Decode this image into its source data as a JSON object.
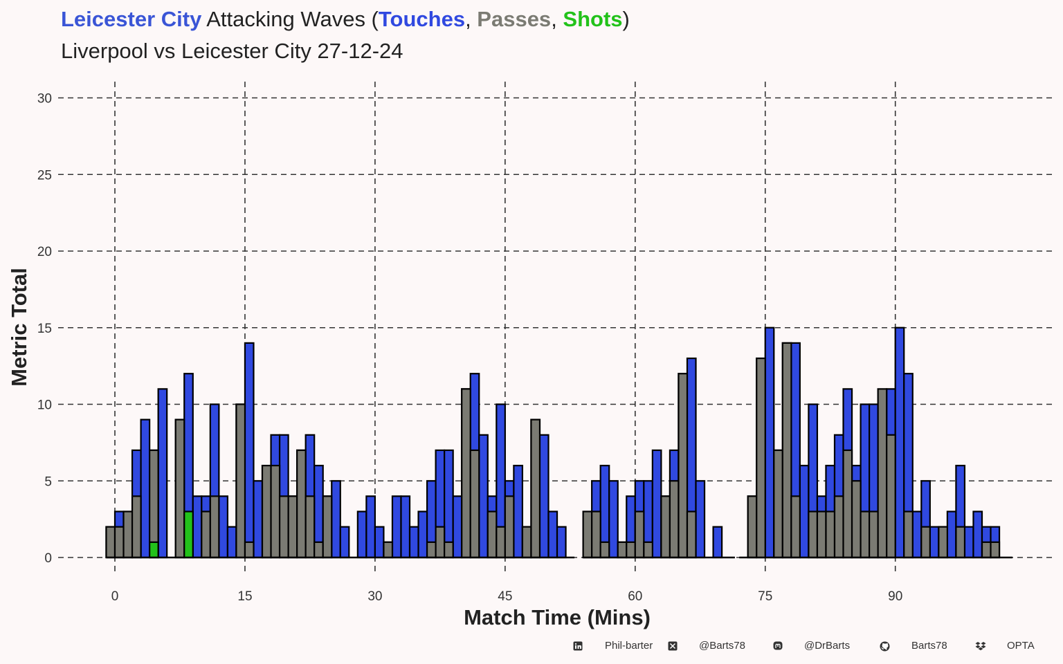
{
  "title": {
    "team": "Leicester City",
    "text_mid": " Attacking Waves (",
    "touches": "Touches",
    "sep1": ", ",
    "passes": "Passes",
    "sep2": ", ",
    "shots": "Shots",
    "close": ")"
  },
  "subtitle": "Liverpool vs Leicester City 27-12-24",
  "colors": {
    "team": "#3a55d6",
    "touches": "#3049e0",
    "passes": "#7b7b73",
    "shots": "#22c21a",
    "background": "#fdf8f8",
    "grid": "#333333"
  },
  "chart_data": {
    "type": "bar",
    "xlabel": "Match Time (Mins)",
    "ylabel": "Metric Total",
    "xlim": [
      -3,
      105
    ],
    "ylim": [
      0,
      30
    ],
    "xticks": [
      0,
      15,
      30,
      45,
      60,
      75,
      90
    ],
    "yticks": [
      0,
      5,
      10,
      15,
      20,
      25,
      30
    ],
    "grid": true,
    "bar_width_minutes": 1,
    "period_baselines": [
      [
        -1,
        53
      ],
      [
        54,
        71.5
      ],
      [
        72,
        103.5
      ]
    ],
    "series": [
      {
        "name": "Touches",
        "x": [
          -0.5,
          0.5,
          1.5,
          2.5,
          3.5,
          4.5,
          5.5,
          7.5,
          8.5,
          9.5,
          10.5,
          11.5,
          12.5,
          13.5,
          14.5,
          15.5,
          16.5,
          17.5,
          18.5,
          19.5,
          20.5,
          21.5,
          22.5,
          23.5,
          24.5,
          25.5,
          26.5,
          28.5,
          29.5,
          30.5,
          31.5,
          32.5,
          33.5,
          34.5,
          35.5,
          36.5,
          37.5,
          38.5,
          39.5,
          40.5,
          41.5,
          42.5,
          43.5,
          44.5,
          45.5,
          46.5,
          47.5,
          48.5,
          49.5,
          50.5,
          51.5,
          54.5,
          55.5,
          56.5,
          57.5,
          58.5,
          59.5,
          60.5,
          61.5,
          62.5,
          63.5,
          64.5,
          65.5,
          66.5,
          67.5,
          69.5,
          73.5,
          74.5,
          75.5,
          76.5,
          77.5,
          78.5,
          79.5,
          80.5,
          81.5,
          82.5,
          83.5,
          84.5,
          85.5,
          86.5,
          87.5,
          88.5,
          89.5,
          90.5,
          91.5,
          92.5,
          93.5,
          94.5,
          95.5,
          96.5,
          97.5,
          98.5,
          99.5,
          100.5,
          101.5,
          102.5
        ],
        "values": [
          2,
          3,
          3,
          7,
          9,
          7,
          11,
          9,
          12,
          4,
          4,
          10,
          4,
          2,
          10,
          14,
          5,
          6,
          8,
          8,
          4,
          7,
          8,
          6,
          4,
          5,
          2,
          3,
          4,
          2,
          1,
          4,
          4,
          2,
          3,
          5,
          7,
          7,
          4,
          11,
          12,
          8,
          4,
          10,
          5,
          6,
          2,
          9,
          8,
          3,
          2,
          3,
          5,
          6,
          5,
          1,
          4,
          5,
          5,
          7,
          4,
          7,
          12,
          13,
          5,
          2,
          4,
          13,
          15,
          7,
          14,
          14,
          6,
          10,
          4,
          6,
          8,
          11,
          6,
          10,
          10,
          4,
          11,
          15,
          12,
          3,
          5,
          2,
          2,
          3,
          6,
          2,
          3,
          2,
          2,
          0
        ]
      },
      {
        "name": "Passes",
        "x": [
          -0.5,
          0.5,
          1.5,
          2.5,
          3.5,
          4.5,
          5.5,
          7.5,
          8.5,
          9.5,
          10.5,
          11.5,
          12.5,
          13.5,
          14.5,
          15.5,
          16.5,
          17.5,
          18.5,
          19.5,
          20.5,
          21.5,
          22.5,
          23.5,
          24.5,
          25.5,
          26.5,
          28.5,
          29.5,
          30.5,
          31.5,
          32.5,
          33.5,
          34.5,
          35.5,
          36.5,
          37.5,
          38.5,
          39.5,
          40.5,
          41.5,
          42.5,
          43.5,
          44.5,
          45.5,
          46.5,
          47.5,
          48.5,
          49.5,
          50.5,
          51.5,
          54.5,
          55.5,
          56.5,
          57.5,
          58.5,
          59.5,
          60.5,
          61.5,
          62.5,
          63.5,
          64.5,
          65.5,
          66.5,
          67.5,
          69.5,
          73.5,
          74.5,
          75.5,
          76.5,
          77.5,
          78.5,
          79.5,
          80.5,
          81.5,
          82.5,
          83.5,
          84.5,
          85.5,
          86.5,
          87.5,
          88.5,
          89.5,
          90.5,
          91.5,
          92.5,
          93.5,
          94.5,
          95.5,
          96.5,
          97.5,
          98.5,
          99.5,
          100.5,
          101.5,
          102.5
        ],
        "values": [
          2,
          2,
          3,
          4,
          0,
          7,
          0,
          9,
          0,
          0,
          3,
          4,
          0,
          0,
          10,
          1,
          0,
          6,
          6,
          4,
          4,
          7,
          4,
          1,
          4,
          0,
          0,
          0,
          0,
          0,
          1,
          0,
          0,
          0,
          0,
          1,
          2,
          1,
          0,
          11,
          7,
          0,
          3,
          2,
          4,
          0,
          2,
          9,
          0,
          0,
          0,
          3,
          3,
          1,
          0,
          1,
          1,
          3,
          1,
          0,
          4,
          5,
          12,
          3,
          0,
          0,
          4,
          13,
          0,
          7,
          14,
          4,
          0,
          3,
          3,
          3,
          4,
          7,
          5,
          3,
          3,
          11,
          8,
          0,
          3,
          0,
          2,
          0,
          2,
          0,
          2,
          0,
          0,
          1,
          1,
          0
        ]
      },
      {
        "name": "Shots",
        "x": [
          4.5,
          8.5
        ],
        "values": [
          1,
          3
        ]
      }
    ]
  },
  "footer": [
    {
      "icon": "linkedin-icon",
      "text": "Phil-barter"
    },
    {
      "icon": "x-twitter-icon",
      "text": "@Barts78"
    },
    {
      "icon": "mastodon-icon",
      "text": "@DrBarts"
    },
    {
      "icon": "github-icon",
      "text": "Barts78"
    },
    {
      "icon": "dropbox-icon",
      "text": "OPTA"
    }
  ]
}
